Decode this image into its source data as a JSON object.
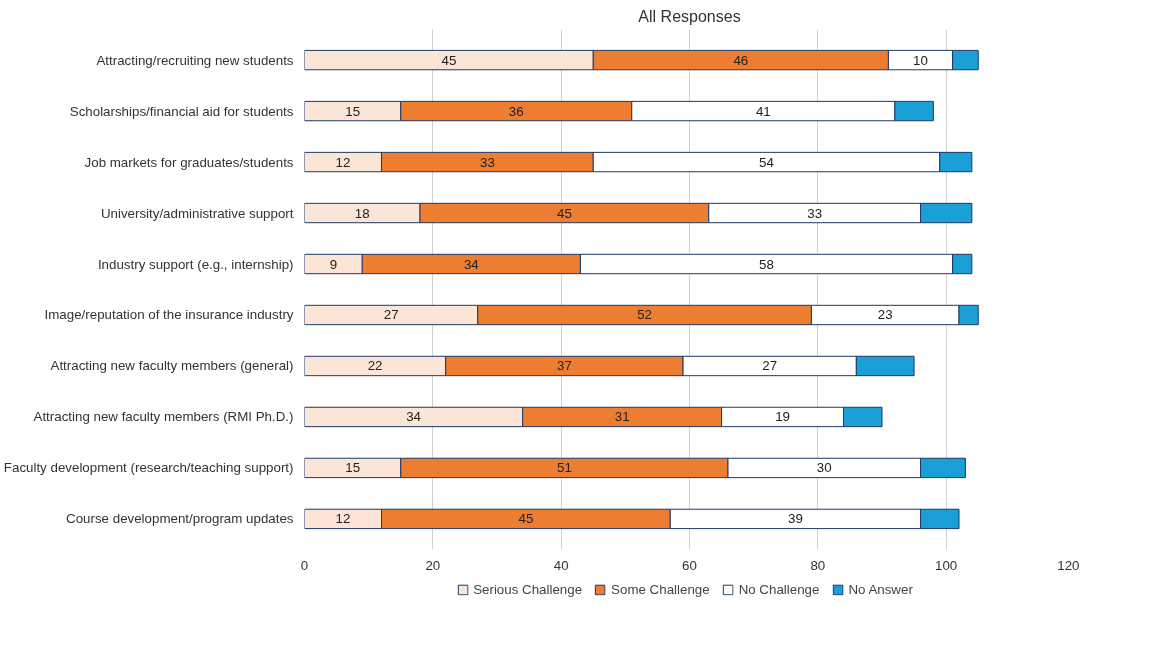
{
  "chart_data": {
    "type": "bar",
    "orientation": "horizontal",
    "stacked": true,
    "title": "All Responses",
    "categories": [
      "Attracting/recruiting new students",
      "Scholarships/financial aid for students",
      "Job markets for graduates/students",
      "University/administrative support",
      "Industry support (e.g., internship)",
      "Image/reputation of the insurance industry",
      "Attracting new faculty members (general)",
      "Attracting new faculty members (RMI Ph.D.)",
      "Faculty development (research/teaching support)",
      "Course development/program updates"
    ],
    "series": [
      {
        "name": "Serious Challenge",
        "color": "#fbe5d6",
        "values": [
          45,
          15,
          12,
          18,
          9,
          27,
          22,
          34,
          15,
          12
        ],
        "value_labels": [
          "45",
          "15",
          "12",
          "18",
          "9",
          "27",
          "22",
          "34",
          "15",
          "12"
        ]
      },
      {
        "name": "Some Challenge",
        "color": "#ed7d31",
        "values": [
          46,
          36,
          33,
          45,
          34,
          52,
          37,
          31,
          51,
          45
        ],
        "value_labels": [
          "46",
          "36",
          "33",
          "45",
          "34",
          "52",
          "37",
          "31",
          "51",
          "45"
        ]
      },
      {
        "name": "No Challenge",
        "color": "#ffffff",
        "values": [
          10,
          41,
          54,
          33,
          58,
          23,
          27,
          19,
          30,
          39
        ],
        "value_labels": [
          "10",
          "41",
          "54",
          "33",
          "58",
          "23",
          "27",
          "19",
          "30",
          "39"
        ]
      },
      {
        "name": "No Answer",
        "color": "#1a9fd6",
        "values": [
          4,
          6,
          5,
          8,
          3,
          3,
          9,
          6,
          7,
          6
        ]
      }
    ],
    "xlim": [
      0,
      120
    ],
    "xticks": [
      0,
      20,
      40,
      60,
      80,
      100,
      120
    ],
    "grid": "x",
    "legend": "bottom"
  }
}
